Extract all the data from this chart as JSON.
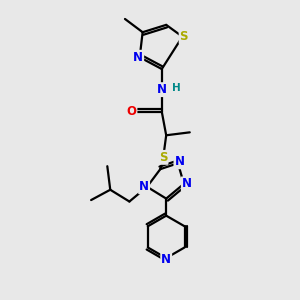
{
  "bg_color": "#e8e8e8",
  "atom_colors": {
    "C": "#000000",
    "N": "#0000ee",
    "O": "#ee0000",
    "S": "#aaaa00",
    "H": "#008888"
  },
  "bond_color": "#000000",
  "bond_width": 1.6,
  "font_size": 8.5,
  "fig_size": [
    3.0,
    3.0
  ],
  "dpi": 100
}
